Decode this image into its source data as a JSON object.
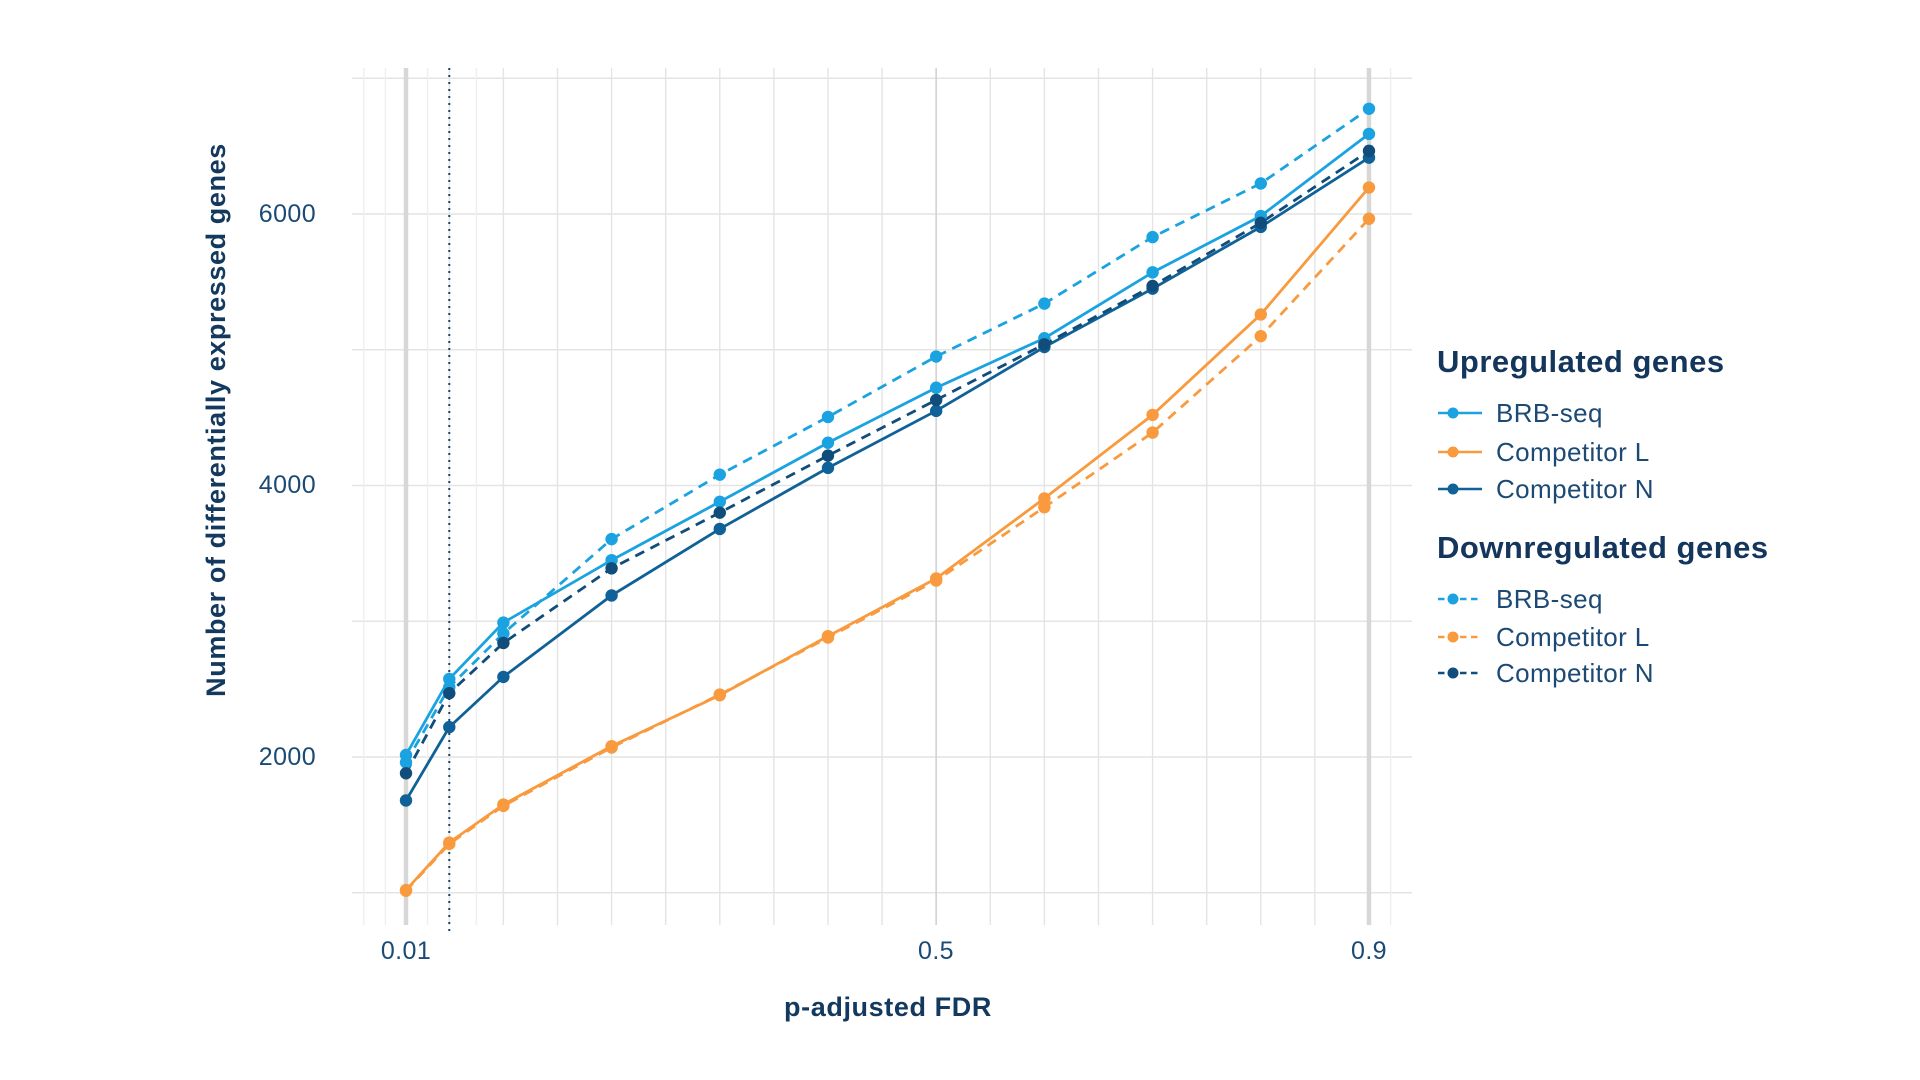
{
  "chart_data": {
    "type": "line",
    "xlabel": "p-adjusted FDR",
    "ylabel": "Number of differentially expressed genes",
    "x": [
      0.01,
      0.05,
      0.1,
      0.2,
      0.3,
      0.4,
      0.5,
      0.6,
      0.7,
      0.8,
      0.9
    ],
    "xlim": [
      -0.04,
      0.94
    ],
    "ylim": [
      760,
      7080
    ],
    "x_ticks": [
      {
        "value": 0.01,
        "label": "0.01"
      },
      {
        "value": 0.5,
        "label": "0.5"
      },
      {
        "value": 0.9,
        "label": "0.9"
      }
    ],
    "y_ticks": [
      {
        "value": 2000,
        "label": "2000"
      },
      {
        "value": 4000,
        "label": "4000"
      },
      {
        "value": 6000,
        "label": "6000"
      }
    ],
    "y_gridlines": [
      1000,
      2000,
      3000,
      4000,
      5000,
      6000,
      7000
    ],
    "x_major_gridlines": [
      0.05,
      0.1,
      0.15,
      0.2,
      0.25,
      0.3,
      0.35,
      0.4,
      0.45,
      0.55,
      0.6,
      0.65,
      0.7,
      0.75,
      0.8,
      0.85
    ],
    "x_half_gridlines": [
      0.5
    ],
    "x_emphasized_gridlines": [
      0.01,
      0.9
    ],
    "x_minor_gridlines": [
      -0.029,
      -0.009,
      0.03,
      0.075,
      0.92
    ],
    "threshold_line": {
      "x": 0.05,
      "style": "dotted",
      "color": "#1b4266"
    },
    "grid_on": true,
    "legend_position": "right",
    "colors": {
      "grid": "#e4e4e4",
      "grid_minor": "#efefef",
      "grid_half": "#d4d4d4",
      "grid_emphasis": "#d7d7d7",
      "text": "#17436b"
    },
    "series": [
      {
        "name": "BRB-seq",
        "group": "Upregulated genes",
        "style": "solid",
        "color": "#1aa3e0",
        "values": [
          2015,
          2575,
          2990,
          3450,
          3880,
          4315,
          4720,
          5085,
          5570,
          5985,
          6590
        ]
      },
      {
        "name": "Competitor L",
        "group": "Upregulated genes",
        "style": "solid",
        "color": "#f89a3d",
        "values": [
          1020,
          1370,
          1650,
          2080,
          2455,
          2890,
          3315,
          3905,
          4520,
          5260,
          6195
        ]
      },
      {
        "name": "Competitor N",
        "group": "Upregulated genes",
        "style": "solid",
        "color": "#0f6197",
        "values": [
          1680,
          2220,
          2590,
          3190,
          3680,
          4130,
          4550,
          5020,
          5450,
          5905,
          6415
        ]
      },
      {
        "name": "BRB-seq",
        "group": "Downregulated genes",
        "style": "dashed",
        "color": "#1aa3e0",
        "values": [
          1960,
          2515,
          2910,
          3605,
          4080,
          4505,
          4950,
          5340,
          5830,
          6225,
          6775
        ]
      },
      {
        "name": "Competitor L",
        "group": "Downregulated genes",
        "style": "dashed",
        "color": "#f89a3d",
        "values": [
          1015,
          1360,
          1640,
          2070,
          2460,
          2880,
          3300,
          3840,
          4390,
          5100,
          5965
        ]
      },
      {
        "name": "Competitor N",
        "group": "Downregulated genes",
        "style": "dashed",
        "color": "#104d7b",
        "values": [
          1880,
          2470,
          2840,
          3390,
          3800,
          4220,
          4630,
          5040,
          5470,
          5935,
          6465
        ]
      }
    ],
    "legend": {
      "groups": [
        {
          "title": "Upregulated genes",
          "items": [
            "BRB-seq",
            "Competitor L",
            "Competitor N"
          ]
        },
        {
          "title": "Downregulated genes",
          "items": [
            "BRB-seq",
            "Competitor L",
            "Competitor N"
          ]
        }
      ]
    }
  }
}
